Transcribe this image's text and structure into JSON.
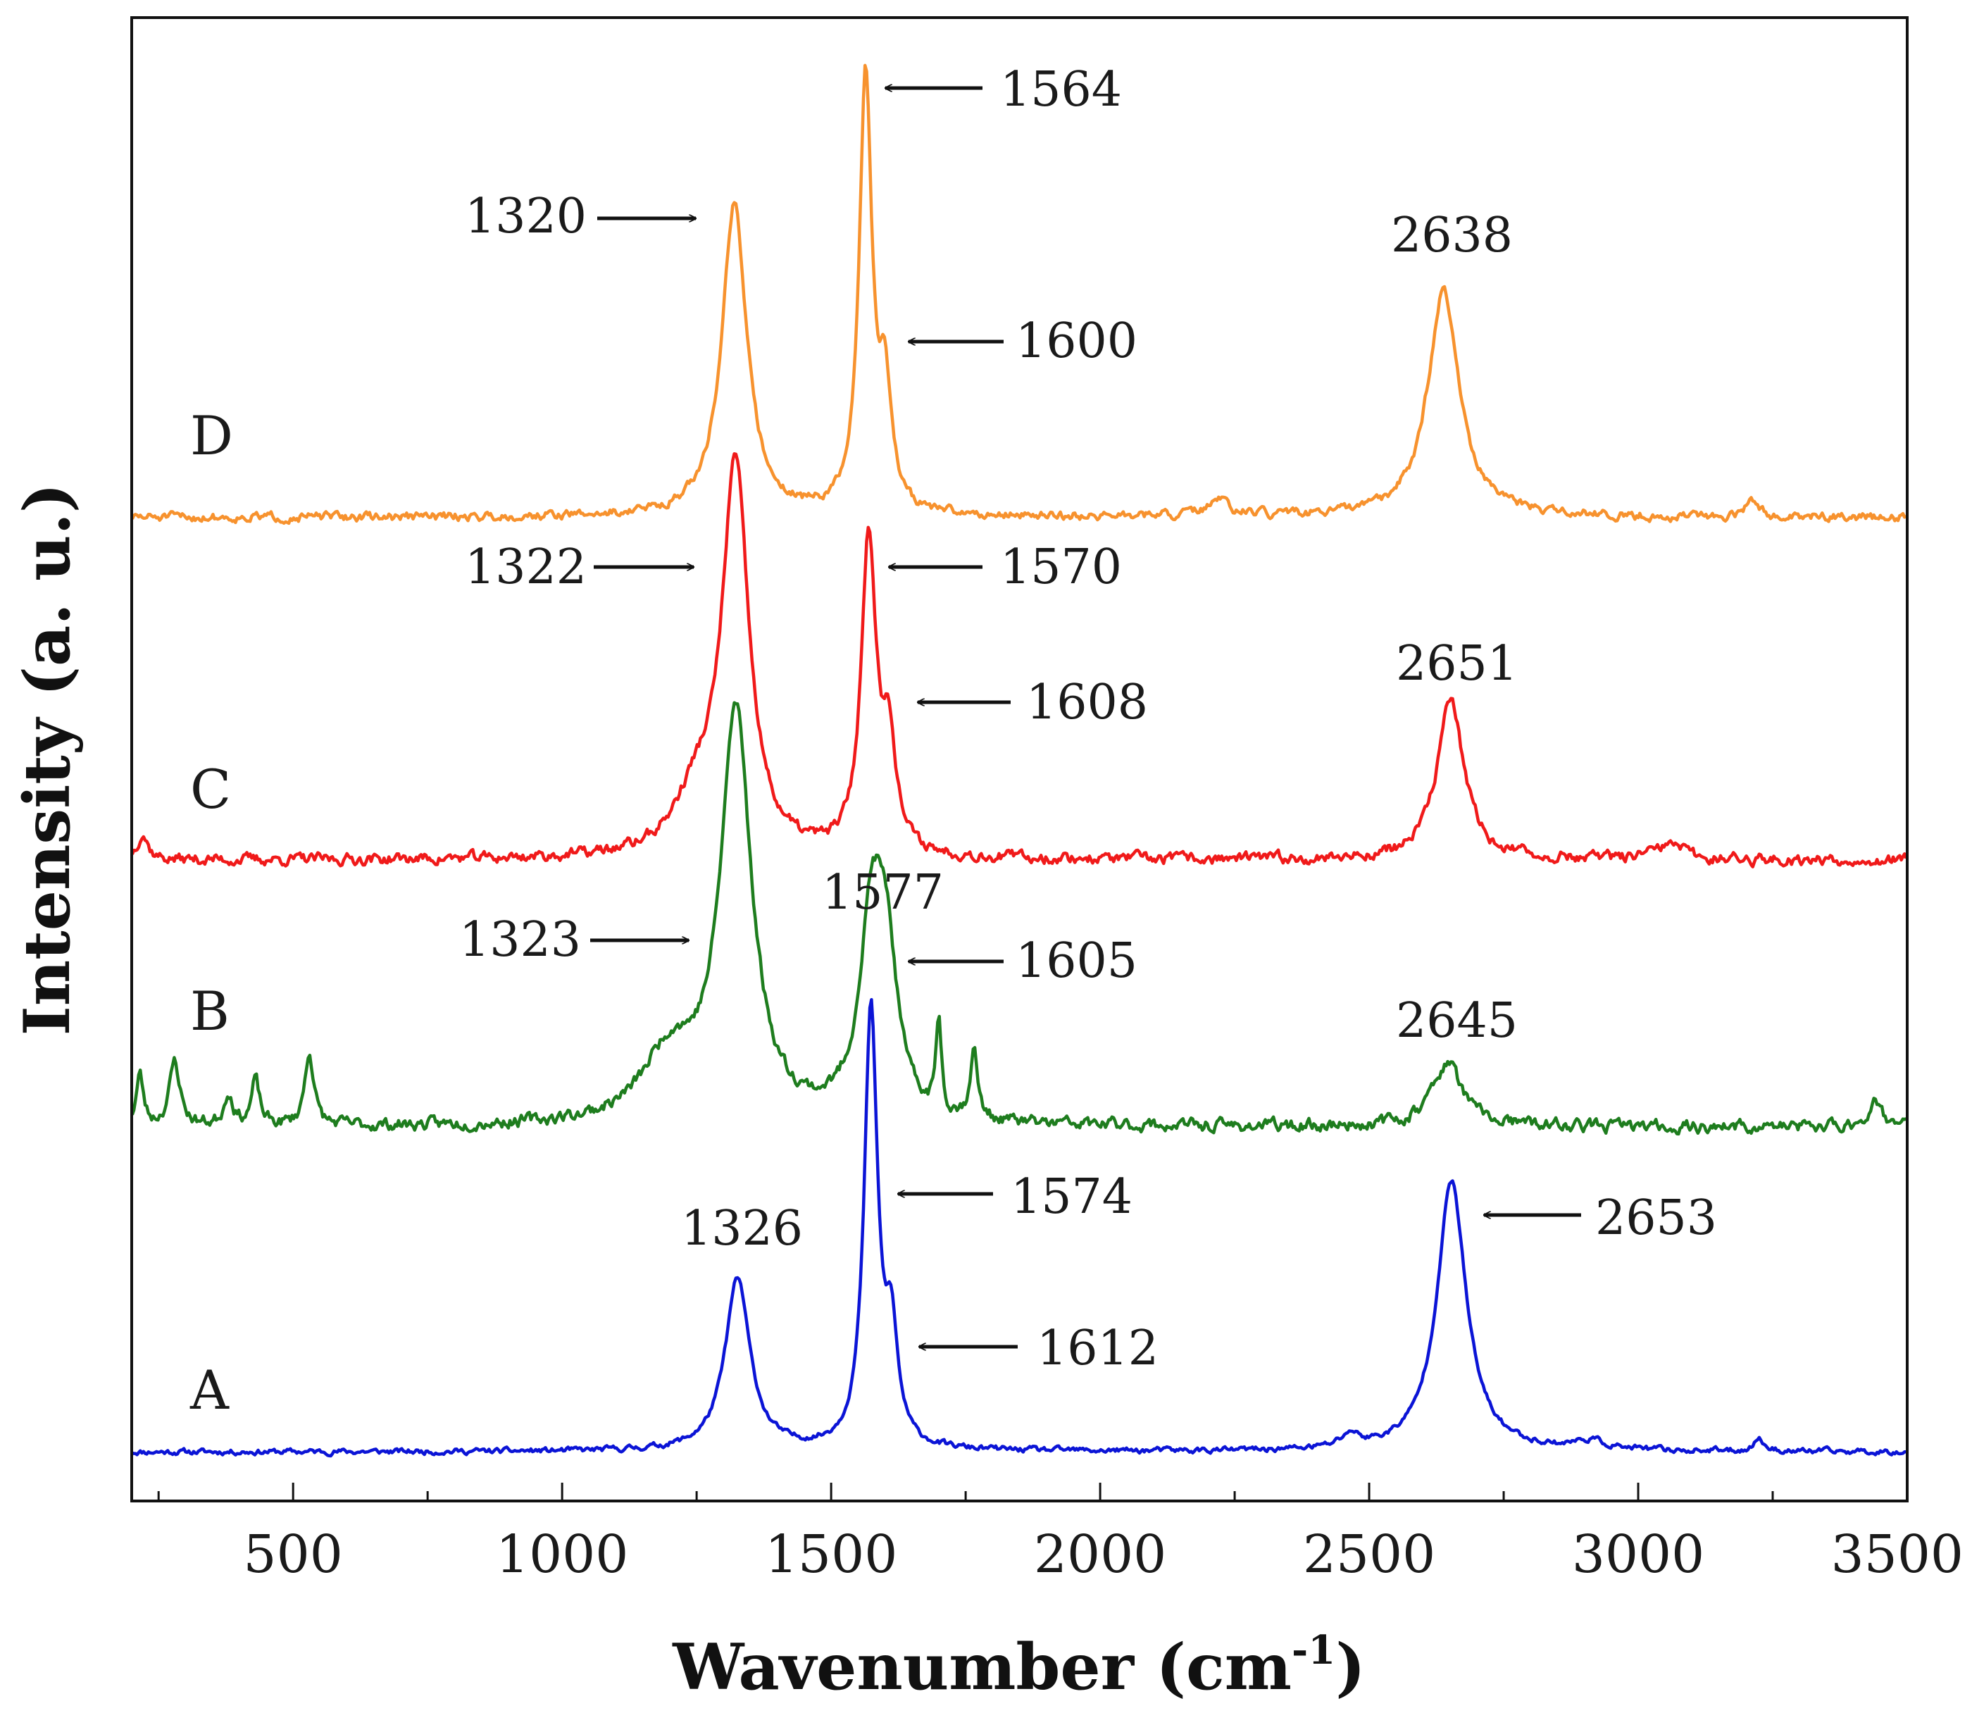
{
  "chart_data": {
    "type": "line",
    "title": "",
    "xlabel_main": "Wavenumber (cm",
    "xlabel_sup": "-1",
    "xlabel_close": ")",
    "ylabel": "Intensity (a. u.)",
    "xlim": [
      200,
      3500
    ],
    "ylim": [
      0,
      100
    ],
    "xticks": [
      500,
      1000,
      1500,
      2000,
      2500,
      3000,
      3500
    ],
    "minor_step": 250,
    "grid": false,
    "series": [
      {
        "name": "A",
        "color": "#0b14d6",
        "baseline": 3.3,
        "noise": 0.25,
        "seed": 11,
        "peaks": [
          {
            "x": 1326,
            "h": 11.6,
            "w": 28
          },
          {
            "x": 1574,
            "h": 29.4,
            "w": 15
          },
          {
            "x": 1612,
            "h": 7.0,
            "w": 14
          },
          {
            "x": 2653,
            "h": 18.2,
            "w": 33
          },
          {
            "x": 2465,
            "h": 0.9,
            "w": 20
          },
          {
            "x": 2910,
            "h": 0.6,
            "w": 35
          },
          {
            "x": 3225,
            "h": 0.8,
            "w": 12
          }
        ]
      },
      {
        "name": "B",
        "color": "#1e7d1e",
        "baseline": 25.2,
        "noise": 0.55,
        "seed": 23,
        "peaks": [
          {
            "x": 215,
            "h": 3.4,
            "w": 8
          },
          {
            "x": 280,
            "h": 4.3,
            "w": 12
          },
          {
            "x": 380,
            "h": 2.2,
            "w": 10
          },
          {
            "x": 430,
            "h": 3.0,
            "w": 9
          },
          {
            "x": 530,
            "h": 5.0,
            "w": 10
          },
          {
            "x": 1200,
            "h": 4.5,
            "w": 60
          },
          {
            "x": 1323,
            "h": 27.5,
            "w": 35
          },
          {
            "x": 1577,
            "h": 14.2,
            "w": 28
          },
          {
            "x": 1605,
            "h": 8.0,
            "w": 22
          },
          {
            "x": 1700,
            "h": 6.3,
            "w": 6
          },
          {
            "x": 1765,
            "h": 4.7,
            "w": 8
          },
          {
            "x": 2645,
            "h": 4.3,
            "w": 34
          },
          {
            "x": 3440,
            "h": 1.8,
            "w": 15
          }
        ]
      },
      {
        "name": "C",
        "color": "#f01a1a",
        "baseline": 43.2,
        "noise": 0.5,
        "seed": 37,
        "peaks": [
          {
            "x": 220,
            "h": 1.8,
            "w": 12
          },
          {
            "x": 1250,
            "h": 3.5,
            "w": 50
          },
          {
            "x": 1322,
            "h": 26.0,
            "w": 30
          },
          {
            "x": 1570,
            "h": 21.2,
            "w": 17
          },
          {
            "x": 1608,
            "h": 7.0,
            "w": 15
          },
          {
            "x": 2651,
            "h": 10.8,
            "w": 30
          },
          {
            "x": 3060,
            "h": 1.0,
            "w": 30
          }
        ]
      },
      {
        "name": "D",
        "color": "#f7922e",
        "baseline": 66.3,
        "noise": 0.4,
        "seed": 51,
        "peaks": [
          {
            "x": 1320,
            "h": 21.1,
            "w": 28
          },
          {
            "x": 1564,
            "h": 29.4,
            "w": 14
          },
          {
            "x": 1600,
            "h": 8.0,
            "w": 14
          },
          {
            "x": 2638,
            "h": 15.3,
            "w": 35
          },
          {
            "x": 2220,
            "h": 1.0,
            "w": 25
          },
          {
            "x": 3210,
            "h": 0.9,
            "w": 15
          }
        ]
      }
    ],
    "annotations": [
      {
        "series": "D",
        "text": "1564",
        "arrow": true,
        "dir": "left"
      },
      {
        "series": "D",
        "text": "1320",
        "arrow": true,
        "dir": "right"
      },
      {
        "series": "D",
        "text": "1600",
        "arrow": true,
        "dir": "left"
      },
      {
        "series": "D",
        "text": "2638",
        "arrow": false
      },
      {
        "series": "C",
        "text": "1322",
        "arrow": true,
        "dir": "right"
      },
      {
        "series": "C",
        "text": "1570",
        "arrow": true,
        "dir": "left"
      },
      {
        "series": "C",
        "text": "1608",
        "arrow": true,
        "dir": "left"
      },
      {
        "series": "C",
        "text": "2651",
        "arrow": false
      },
      {
        "series": "B",
        "text": "1577",
        "arrow": false
      },
      {
        "series": "B",
        "text": "1323",
        "arrow": true,
        "dir": "right"
      },
      {
        "series": "B",
        "text": "1605",
        "arrow": true,
        "dir": "left"
      },
      {
        "series": "B",
        "text": "2645",
        "arrow": false
      },
      {
        "series": "A",
        "text": "1574",
        "arrow": true,
        "dir": "left"
      },
      {
        "series": "A",
        "text": "1326",
        "arrow": false
      },
      {
        "series": "A",
        "text": "1612",
        "arrow": true,
        "dir": "left"
      },
      {
        "series": "A",
        "text": "2653",
        "arrow": true,
        "dir": "left"
      }
    ]
  }
}
